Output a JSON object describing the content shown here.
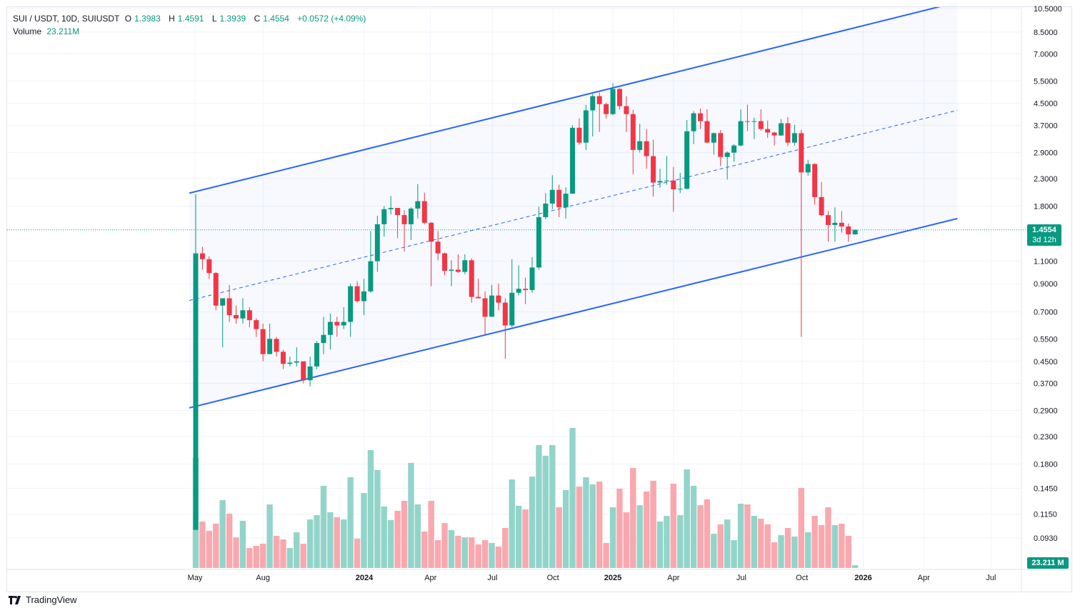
{
  "legend": {
    "symbol": "SUI / USDT, 10D, SUIUSDT",
    "o_label": "O",
    "o": "1.3983",
    "h_label": "H",
    "h": "1.4591",
    "l_label": "L",
    "l": "1.3939",
    "c_label": "C",
    "c": "1.4554",
    "change": "+0.0572 (+4.09%)",
    "volume_label": "Volume",
    "volume": "23.211M"
  },
  "price_badge": {
    "price": "1.4554",
    "countdown": "3d 12h"
  },
  "volume_badge": "23.211 M",
  "branding": "TradingView",
  "colors": {
    "up": "#089981",
    "down": "#F23645",
    "channel": "#2962FF",
    "up_volume": "#92D4CA",
    "down_volume": "#F9A8AE"
  },
  "chart_data": {
    "type": "candlestick",
    "title": "SUI / USDT, 10D, SUIUSDT",
    "scale": "log",
    "ylim": [
      0.0932,
      10.5
    ],
    "yticks": [
      "10.5000",
      "8.5000",
      "7.0000",
      "5.5000",
      "4.5000",
      "3.7000",
      "2.9000",
      "2.3000",
      "1.8000",
      "1.1000",
      "0.9000",
      "0.7000",
      "0.5500",
      "0.4500",
      "0.3700",
      "0.2900",
      "0.2300",
      "0.1800",
      "0.1450",
      "0.1150",
      "0.0930"
    ],
    "xticks": [
      {
        "label": "May",
        "index": -0.1,
        "bold": false
      },
      {
        "label": "Aug",
        "index": 10.0,
        "bold": false
      },
      {
        "label": "2024",
        "index": 25.05,
        "bold": true
      },
      {
        "label": "Apr",
        "index": 34.9,
        "bold": false
      },
      {
        "label": "Jul",
        "index": 44.1,
        "bold": false
      },
      {
        "label": "Oct",
        "index": 53.1,
        "bold": false
      },
      {
        "label": "2025",
        "index": 62.0,
        "bold": true
      },
      {
        "label": "Apr",
        "index": 71.0,
        "bold": false
      },
      {
        "label": "Jul",
        "index": 81.1,
        "bold": false
      },
      {
        "label": "Oct",
        "index": 90.1,
        "bold": false
      },
      {
        "label": "2026",
        "index": 99.2,
        "bold": true
      },
      {
        "label": "Apr",
        "index": 108.2,
        "bold": false
      },
      {
        "label": "Jul",
        "index": 118.2,
        "bold": false
      }
    ],
    "ohlc": [
      [
        0.1,
        2.0,
        0.1,
        1.18
      ],
      [
        1.18,
        1.25,
        1.02,
        1.12
      ],
      [
        1.12,
        1.15,
        0.94,
        0.99
      ],
      [
        0.99,
        1.0,
        0.71,
        0.74
      ],
      [
        0.74,
        0.79,
        0.51,
        0.79
      ],
      [
        0.79,
        0.89,
        0.64,
        0.68
      ],
      [
        0.68,
        0.74,
        0.63,
        0.66
      ],
      [
        0.66,
        0.79,
        0.63,
        0.71
      ],
      [
        0.71,
        0.73,
        0.61,
        0.65
      ],
      [
        0.65,
        0.66,
        0.56,
        0.6
      ],
      [
        0.6,
        0.63,
        0.45,
        0.48
      ],
      [
        0.48,
        0.63,
        0.48,
        0.55
      ],
      [
        0.55,
        0.56,
        0.47,
        0.49
      ],
      [
        0.49,
        0.5,
        0.42,
        0.44
      ],
      [
        0.44,
        0.47,
        0.43,
        0.445
      ],
      [
        0.445,
        0.51,
        0.43,
        0.45
      ],
      [
        0.45,
        0.45,
        0.37,
        0.38
      ],
      [
        0.38,
        0.47,
        0.36,
        0.43
      ],
      [
        0.43,
        0.54,
        0.42,
        0.53
      ],
      [
        0.53,
        0.67,
        0.48,
        0.57
      ],
      [
        0.57,
        0.69,
        0.5,
        0.64
      ],
      [
        0.64,
        0.67,
        0.56,
        0.62
      ],
      [
        0.62,
        0.73,
        0.6,
        0.64
      ],
      [
        0.64,
        0.9,
        0.56,
        0.88
      ],
      [
        0.88,
        0.92,
        0.76,
        0.77
      ],
      [
        0.77,
        0.94,
        0.68,
        0.84
      ],
      [
        0.84,
        1.44,
        0.83,
        1.1
      ],
      [
        1.1,
        1.65,
        1.0,
        1.53
      ],
      [
        1.53,
        1.8,
        1.37,
        1.75
      ],
      [
        1.75,
        1.97,
        1.67,
        1.77
      ],
      [
        1.77,
        1.77,
        1.35,
        1.66
      ],
      [
        1.66,
        1.73,
        1.2,
        1.53
      ],
      [
        1.53,
        1.78,
        1.33,
        1.76
      ],
      [
        1.76,
        2.19,
        1.61,
        1.88
      ],
      [
        1.88,
        2.03,
        1.53,
        1.55
      ],
      [
        1.55,
        1.56,
        0.88,
        1.31
      ],
      [
        1.31,
        1.44,
        1.11,
        1.18
      ],
      [
        1.18,
        1.19,
        0.97,
        1.01
      ],
      [
        1.01,
        1.11,
        0.88,
        1.02
      ],
      [
        1.02,
        1.17,
        0.99,
        1.0
      ],
      [
        1.0,
        1.17,
        0.98,
        1.11
      ],
      [
        1.11,
        1.13,
        0.76,
        0.8
      ],
      [
        0.8,
        0.94,
        0.79,
        0.79
      ],
      [
        0.79,
        0.84,
        0.57,
        0.67
      ],
      [
        0.67,
        0.89,
        0.67,
        0.81
      ],
      [
        0.81,
        0.9,
        0.71,
        0.76
      ],
      [
        0.76,
        0.79,
        0.46,
        0.62
      ],
      [
        0.62,
        1.12,
        0.61,
        0.83
      ],
      [
        0.83,
        1.06,
        0.81,
        0.86
      ],
      [
        0.86,
        0.95,
        0.75,
        0.85
      ],
      [
        0.85,
        1.14,
        0.83,
        1.04
      ],
      [
        1.04,
        1.79,
        1.02,
        1.63
      ],
      [
        1.63,
        2.02,
        1.6,
        1.84
      ],
      [
        1.84,
        2.37,
        1.75,
        2.08
      ],
      [
        2.08,
        2.18,
        1.63,
        1.78
      ],
      [
        1.78,
        2.13,
        1.61,
        2.01
      ],
      [
        2.01,
        3.7,
        2.01,
        3.62
      ],
      [
        3.62,
        3.94,
        3.11,
        3.17
      ],
      [
        3.17,
        4.44,
        2.97,
        4.23
      ],
      [
        4.23,
        4.9,
        3.35,
        4.8
      ],
      [
        4.8,
        4.96,
        3.49,
        4.47
      ],
      [
        4.47,
        4.52,
        3.93,
        4.09
      ],
      [
        4.09,
        5.39,
        4.05,
        5.12
      ],
      [
        5.12,
        5.15,
        4.25,
        4.39
      ],
      [
        4.39,
        4.8,
        3.49,
        4.09
      ],
      [
        4.09,
        4.25,
        2.39,
        2.97
      ],
      [
        2.97,
        3.75,
        2.9,
        3.21
      ],
      [
        3.21,
        3.58,
        2.51,
        2.81
      ],
      [
        2.81,
        3.25,
        1.96,
        2.22
      ],
      [
        2.22,
        2.51,
        2.12,
        2.25
      ],
      [
        2.25,
        2.81,
        2.18,
        2.26
      ],
      [
        2.26,
        2.55,
        1.71,
        2.09
      ],
      [
        2.09,
        2.42,
        2.02,
        2.1
      ],
      [
        2.1,
        3.88,
        2.09,
        3.51
      ],
      [
        3.51,
        4.2,
        3.13,
        4.12
      ],
      [
        4.12,
        4.3,
        3.58,
        3.84
      ],
      [
        3.84,
        4.27,
        3.17,
        3.17
      ],
      [
        3.17,
        3.47,
        2.85,
        3.45
      ],
      [
        3.45,
        3.55,
        2.57,
        2.79
      ],
      [
        2.79,
        2.93,
        2.28,
        2.9
      ],
      [
        2.9,
        3.13,
        2.67,
        3.09
      ],
      [
        3.09,
        4.26,
        3.07,
        3.84
      ],
      [
        3.84,
        4.45,
        3.51,
        3.82
      ],
      [
        3.82,
        3.96,
        3.27,
        3.84
      ],
      [
        3.84,
        4.27,
        3.53,
        3.58
      ],
      [
        3.58,
        3.86,
        3.31,
        3.47
      ],
      [
        3.47,
        3.49,
        3.09,
        3.38
      ],
      [
        3.38,
        3.91,
        3.36,
        3.77
      ],
      [
        3.77,
        3.98,
        3.07,
        3.17
      ],
      [
        3.17,
        3.72,
        3.09,
        3.45
      ],
      [
        3.45,
        3.56,
        0.56,
        2.43
      ],
      [
        2.43,
        2.72,
        2.36,
        2.62
      ],
      [
        2.62,
        2.64,
        1.82,
        1.95
      ],
      [
        1.95,
        2.23,
        1.64,
        1.66
      ],
      [
        1.66,
        1.72,
        1.31,
        1.52
      ],
      [
        1.52,
        1.78,
        1.31,
        1.55
      ],
      [
        1.55,
        1.72,
        1.42,
        1.5
      ],
      [
        1.5,
        1.54,
        1.31,
        1.398
      ],
      [
        1.3983,
        1.4591,
        1.3939,
        1.4554
      ]
    ],
    "volume_unit": "M",
    "volume": [
      893,
      377,
      302,
      360,
      551,
      441,
      249,
      383,
      162,
      180,
      197,
      516,
      261,
      232,
      162,
      290,
      197,
      394,
      429,
      667,
      452,
      412,
      394,
      737,
      238,
      609,
      957,
      795,
      499,
      389,
      464,
      545,
      853,
      516,
      296,
      545,
      226,
      365,
      307,
      261,
      249,
      249,
      191,
      226,
      203,
      174,
      325,
      719,
      505,
      476,
      742,
      998,
      911,
      998,
      493,
      632,
      1137,
      661,
      737,
      679,
      702,
      203,
      493,
      644,
      452,
      812,
      510,
      621,
      708,
      377,
      423,
      684,
      429,
      800,
      667,
      510,
      557,
      278,
      354,
      394,
      226,
      522,
      516,
      423,
      400,
      354,
      209,
      267,
      325,
      255,
      650,
      290,
      423,
      348,
      493,
      348,
      360,
      261,
      23.2
    ],
    "channel": {
      "start_index": -0.96,
      "end_index": 113.2,
      "upper": [
        2.02,
        11.1
      ],
      "middle": [
        0.775,
        4.23
      ],
      "lower": [
        0.297,
        1.61
      ]
    },
    "last_price": 1.4554
  }
}
